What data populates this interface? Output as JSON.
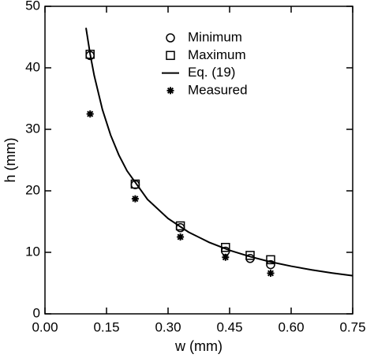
{
  "chart_data": {
    "type": "scatter",
    "x_label": "w (mm)",
    "y_label": "h (mm)",
    "xlim": [
      0,
      0.75
    ],
    "ylim": [
      0,
      50
    ],
    "xticks": [
      {
        "value": 0,
        "label": "0.00"
      },
      {
        "value": 0.15,
        "label": "0.15"
      },
      {
        "value": 0.3,
        "label": "0.30"
      },
      {
        "value": 0.45,
        "label": "0.45"
      },
      {
        "value": 0.6,
        "label": "0.60"
      },
      {
        "value": 0.75,
        "label": "0.75"
      }
    ],
    "yticks": [
      0,
      10,
      20,
      30,
      40,
      50
    ],
    "legend": "top-right",
    "series": [
      {
        "name": "Minimum",
        "marker": "circle",
        "color": "#000000",
        "x": [
          0.11,
          0.22,
          0.33,
          0.44,
          0.5,
          0.55
        ],
        "y": [
          42,
          21,
          14,
          10.2,
          9,
          8
        ]
      },
      {
        "name": "Maximum",
        "marker": "square",
        "color": "#000000",
        "x": [
          0.11,
          0.22,
          0.33,
          0.44,
          0.5,
          0.55
        ],
        "y": [
          42.2,
          21.1,
          14.3,
          10.8,
          9.5,
          8.8
        ]
      },
      {
        "name": "Eq. (19)",
        "marker": "line",
        "color": "#000000",
        "x": [
          0.1,
          0.11,
          0.12,
          0.14,
          0.16,
          0.18,
          0.2,
          0.25,
          0.3,
          0.35,
          0.4,
          0.45,
          0.5,
          0.55,
          0.6,
          0.65,
          0.7,
          0.75
        ],
        "y": [
          46.5,
          42.27,
          38.75,
          33.21,
          29.06,
          25.83,
          23.25,
          18.6,
          15.5,
          13.29,
          11.63,
          10.33,
          9.3,
          8.45,
          7.75,
          7.15,
          6.64,
          6.2
        ]
      },
      {
        "name": "Measured",
        "marker": "asterisk",
        "color": "#000000",
        "x": [
          0.11,
          0.22,
          0.33,
          0.44,
          0.55
        ],
        "y": [
          32.5,
          18.7,
          12.5,
          9.2,
          6.6
        ]
      }
    ]
  }
}
